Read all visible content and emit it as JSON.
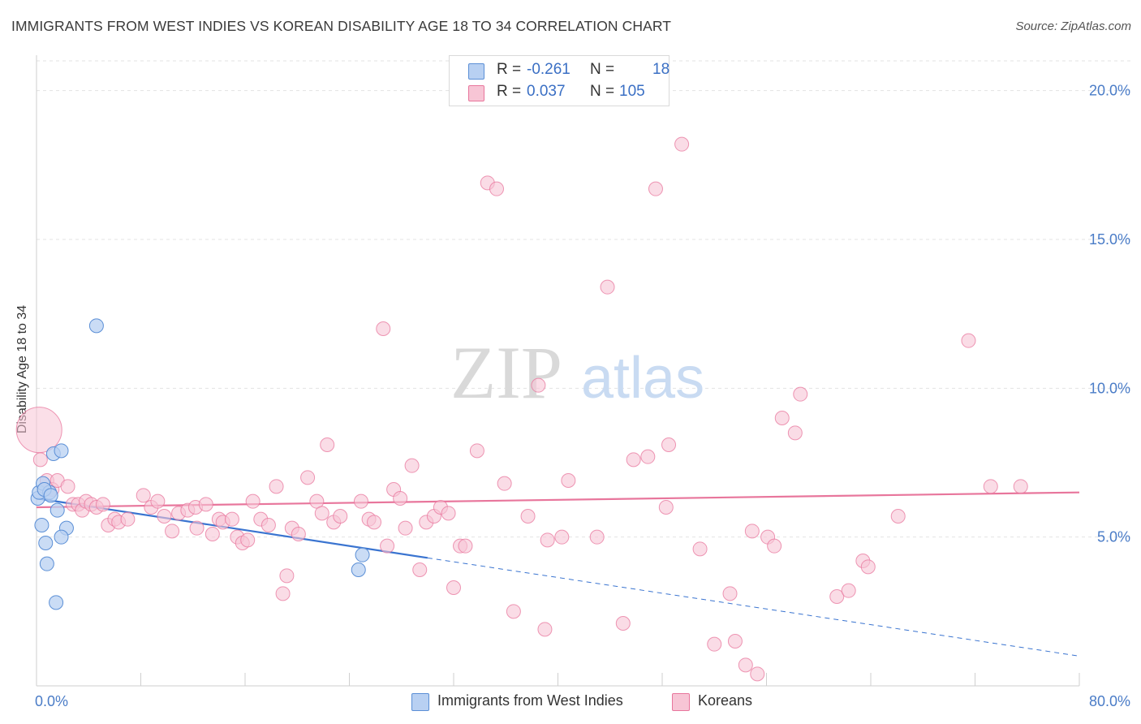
{
  "title": "IMMIGRANTS FROM WEST INDIES VS KOREAN DISABILITY AGE 18 TO 34 CORRELATION CHART",
  "source": "Source: ZipAtlas.com",
  "watermark": {
    "zip": "ZIP",
    "atlas": "atlas"
  },
  "colors": {
    "blue": "#5b8fd6",
    "blue_fill": "#b8d0f2",
    "pink": "#e8769c",
    "pink_fill": "#f7c5d5",
    "axis_text": "#4a7cc7"
  },
  "stats": {
    "rows": [
      {
        "r_label": "R =",
        "r_value": "-0.261",
        "n_label": "N =",
        "n_value": "18"
      },
      {
        "r_label": "R =",
        "r_value": "0.037",
        "n_label": "N =",
        "n_value": "105"
      }
    ]
  },
  "legend": {
    "series1": "Immigrants from West Indies",
    "series2": "Koreans"
  },
  "chart_data": {
    "type": "scatter",
    "title": "IMMIGRANTS FROM WEST INDIES VS KOREAN DISABILITY AGE 18 TO 34 CORRELATION CHART",
    "xlabel": "",
    "ylabel": "Disability Age 18 to 34",
    "xlim": [
      0,
      80
    ],
    "ylim": [
      0,
      21
    ],
    "x_tick_labels": [
      "0.0%",
      "80.0%"
    ],
    "y_ticks": [
      {
        "value": 5,
        "label": "5.0%"
      },
      {
        "value": 10,
        "label": "10.0%"
      },
      {
        "value": 15,
        "label": "15.0%"
      },
      {
        "value": 20,
        "label": "20.0%"
      }
    ],
    "series": [
      {
        "name": "Immigrants from West Indies",
        "color": "#5b8fd6",
        "r": -0.261,
        "n": 18,
        "trend": {
          "x0": 0,
          "y0": 6.3,
          "x1": 30,
          "y1": 4.3,
          "dashed_to_x": 80,
          "dashed_to_y": 1.0
        },
        "points": [
          [
            0.1,
            6.3
          ],
          [
            0.2,
            6.5
          ],
          [
            0.4,
            5.4
          ],
          [
            0.5,
            6.8
          ],
          [
            0.7,
            4.8
          ],
          [
            0.8,
            4.1
          ],
          [
            1.0,
            6.5
          ],
          [
            1.3,
            7.8
          ],
          [
            1.6,
            5.9
          ],
          [
            1.9,
            7.9
          ],
          [
            2.3,
            5.3
          ],
          [
            1.5,
            2.8
          ],
          [
            1.9,
            5.0
          ],
          [
            4.6,
            12.1
          ],
          [
            25.0,
            4.4
          ],
          [
            24.7,
            3.9
          ],
          [
            0.6,
            6.6
          ],
          [
            1.1,
            6.4
          ]
        ]
      },
      {
        "name": "Koreans",
        "color": "#e8769c",
        "r": 0.037,
        "n": 105,
        "trend": {
          "x0": 0,
          "y0": 6.0,
          "x1": 80,
          "y1": 6.5
        },
        "points": [
          [
            0.3,
            7.6
          ],
          [
            0.8,
            6.9
          ],
          [
            1.2,
            6.6
          ],
          [
            1.6,
            6.9
          ],
          [
            2.4,
            6.7
          ],
          [
            2.8,
            6.1
          ],
          [
            3.2,
            6.1
          ],
          [
            3.5,
            5.9
          ],
          [
            3.8,
            6.2
          ],
          [
            4.2,
            6.1
          ],
          [
            4.6,
            6.0
          ],
          [
            5.1,
            6.1
          ],
          [
            5.5,
            5.4
          ],
          [
            6.0,
            5.6
          ],
          [
            6.3,
            5.5
          ],
          [
            7.0,
            5.6
          ],
          [
            8.2,
            6.4
          ],
          [
            8.8,
            6.0
          ],
          [
            9.3,
            6.2
          ],
          [
            9.8,
            5.7
          ],
          [
            10.4,
            5.2
          ],
          [
            10.9,
            5.8
          ],
          [
            11.6,
            5.9
          ],
          [
            12.2,
            6.0
          ],
          [
            12.3,
            5.3
          ],
          [
            13.0,
            6.1
          ],
          [
            13.5,
            5.1
          ],
          [
            14.0,
            5.6
          ],
          [
            14.3,
            5.5
          ],
          [
            15.0,
            5.6
          ],
          [
            15.4,
            5.0
          ],
          [
            15.8,
            4.8
          ],
          [
            16.2,
            4.9
          ],
          [
            16.6,
            6.2
          ],
          [
            17.2,
            5.6
          ],
          [
            17.8,
            5.4
          ],
          [
            18.4,
            6.7
          ],
          [
            18.9,
            3.1
          ],
          [
            19.2,
            3.7
          ],
          [
            19.6,
            5.3
          ],
          [
            20.1,
            5.1
          ],
          [
            20.8,
            7.0
          ],
          [
            21.5,
            6.2
          ],
          [
            21.9,
            5.8
          ],
          [
            22.3,
            8.1
          ],
          [
            22.8,
            5.5
          ],
          [
            23.3,
            5.7
          ],
          [
            24.9,
            6.2
          ],
          [
            25.5,
            5.6
          ],
          [
            25.9,
            5.5
          ],
          [
            26.6,
            12.0
          ],
          [
            26.9,
            4.7
          ],
          [
            27.4,
            6.6
          ],
          [
            27.9,
            6.3
          ],
          [
            28.3,
            5.3
          ],
          [
            28.8,
            7.4
          ],
          [
            29.4,
            3.9
          ],
          [
            29.9,
            5.5
          ],
          [
            30.5,
            5.7
          ],
          [
            31.0,
            6.0
          ],
          [
            31.6,
            5.8
          ],
          [
            32.0,
            3.3
          ],
          [
            32.5,
            4.7
          ],
          [
            32.9,
            4.7
          ],
          [
            33.8,
            7.9
          ],
          [
            34.6,
            16.9
          ],
          [
            35.3,
            16.7
          ],
          [
            35.9,
            6.8
          ],
          [
            36.6,
            2.5
          ],
          [
            37.7,
            5.7
          ],
          [
            38.5,
            10.1
          ],
          [
            39.0,
            1.9
          ],
          [
            39.2,
            4.9
          ],
          [
            40.3,
            5.0
          ],
          [
            40.8,
            6.9
          ],
          [
            43.0,
            5.0
          ],
          [
            43.8,
            13.4
          ],
          [
            45.0,
            2.1
          ],
          [
            45.8,
            7.6
          ],
          [
            46.9,
            7.7
          ],
          [
            47.5,
            16.7
          ],
          [
            48.3,
            6.0
          ],
          [
            48.5,
            8.1
          ],
          [
            49.5,
            18.2
          ],
          [
            50.9,
            4.6
          ],
          [
            52.0,
            1.4
          ],
          [
            53.2,
            3.1
          ],
          [
            53.6,
            1.5
          ],
          [
            54.4,
            0.7
          ],
          [
            54.9,
            5.2
          ],
          [
            55.3,
            0.4
          ],
          [
            56.1,
            5.0
          ],
          [
            56.6,
            4.7
          ],
          [
            57.2,
            9.0
          ],
          [
            58.2,
            8.5
          ],
          [
            58.6,
            9.8
          ],
          [
            61.4,
            3.0
          ],
          [
            62.3,
            3.2
          ],
          [
            63.4,
            4.2
          ],
          [
            63.8,
            4.0
          ],
          [
            66.1,
            5.7
          ],
          [
            71.5,
            11.6
          ],
          [
            73.2,
            6.7
          ],
          [
            75.5,
            6.7
          ],
          [
            0.2,
            8.6
          ]
        ]
      }
    ]
  }
}
